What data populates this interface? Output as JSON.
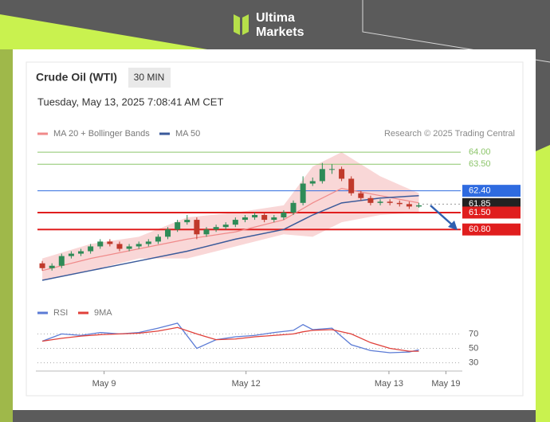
{
  "brand": [
    "Ultima",
    "Markets"
  ],
  "chart_data": [
    {
      "type": "candlestick",
      "title": "Crude Oil (WTI)",
      "interval": "30 MIN",
      "timestamp": "Tuesday, May 13, 2025 7:08:41 AM CET",
      "source": "Research © 2025 Trading Central",
      "open": [
        59.4,
        59.2,
        59.3,
        59.7,
        59.8,
        59.9,
        60.1,
        60.3,
        60.2,
        60.0,
        60.1,
        60.2,
        60.3,
        60.5,
        60.8,
        61.1,
        61.2,
        60.6,
        60.8,
        60.9,
        61.0,
        61.2,
        61.3,
        61.4,
        61.2,
        61.3,
        61.5,
        61.9,
        62.7,
        62.8,
        63.3,
        63.3,
        62.9,
        62.3,
        62.1,
        61.9,
        61.95,
        61.9,
        61.85,
        61.75
      ],
      "high": [
        59.5,
        59.4,
        59.8,
        59.9,
        60.0,
        60.2,
        60.4,
        60.4,
        60.3,
        60.2,
        60.3,
        60.4,
        60.6,
        60.9,
        61.2,
        61.4,
        61.3,
        60.9,
        61.0,
        61.1,
        61.3,
        61.4,
        61.5,
        61.5,
        61.4,
        61.6,
        62.0,
        63.0,
        62.95,
        63.55,
        63.5,
        63.4,
        63.0,
        62.4,
        62.2,
        62.05,
        62.05,
        62.0,
        61.95,
        61.9
      ],
      "low": [
        59.1,
        59.1,
        59.2,
        59.6,
        59.7,
        59.8,
        60.0,
        60.1,
        59.9,
        59.9,
        60.0,
        60.1,
        60.2,
        60.4,
        60.7,
        61.0,
        60.4,
        60.5,
        60.7,
        60.8,
        60.9,
        61.1,
        61.2,
        61.1,
        61.1,
        61.2,
        61.4,
        61.8,
        62.6,
        62.7,
        63.1,
        62.8,
        62.2,
        62.0,
        61.8,
        61.8,
        61.8,
        61.75,
        61.65,
        61.7
      ],
      "close": [
        59.2,
        59.3,
        59.7,
        59.8,
        59.9,
        60.1,
        60.3,
        60.2,
        60.0,
        60.1,
        60.2,
        60.3,
        60.5,
        60.8,
        61.1,
        61.2,
        60.6,
        60.8,
        60.9,
        61.0,
        61.2,
        61.3,
        61.4,
        61.2,
        61.3,
        61.5,
        61.9,
        62.7,
        62.8,
        63.3,
        63.3,
        62.9,
        62.3,
        62.1,
        61.9,
        61.95,
        61.9,
        61.85,
        61.75,
        61.8
      ],
      "up_color": "#2e8b57",
      "down_color": "#c0392b",
      "line_x": [
        0,
        5,
        10,
        15,
        20,
        25,
        28,
        31,
        35,
        39
      ],
      "series": [
        {
          "name": "MA 20 + Bollinger Bands",
          "color": "#f08a8a",
          "values": [
            59.1,
            59.6,
            60.0,
            60.4,
            60.7,
            61.2,
            61.9,
            62.5,
            62.2,
            61.9
          ]
        },
        {
          "name": "MA 50",
          "color": "#3a5a9a",
          "values": [
            58.7,
            59.1,
            59.5,
            59.9,
            60.4,
            60.8,
            61.4,
            61.9,
            62.1,
            62.2
          ]
        }
      ],
      "band_upper": [
        59.6,
        60.2,
        60.5,
        61.3,
        61.5,
        61.8,
        63.4,
        64.0,
        63.0,
        62.3
      ],
      "band_lower": [
        58.7,
        59.1,
        59.6,
        59.6,
        60.1,
        60.6,
        60.5,
        61.1,
        61.4,
        61.5
      ],
      "band_color": "#f7c6c6",
      "levels": [
        {
          "value": 64,
          "label": "64.00",
          "color": "#8cc56a",
          "boxed": false,
          "bold": false,
          "dotted": false
        },
        {
          "value": 63.5,
          "label": "63.50",
          "color": "#8cc56a",
          "boxed": false,
          "bold": false,
          "dotted": false
        },
        {
          "value": 62.4,
          "label": "62.40",
          "color": "#2f6be0",
          "boxed": true,
          "bold": false,
          "dotted": false
        },
        {
          "value": 61.85,
          "label": "61.85",
          "color": "#222222",
          "boxed": true,
          "bold": false,
          "dotted": true
        },
        {
          "value": 61.5,
          "label": "61.50",
          "color": "#e01e1e",
          "boxed": true,
          "bold": true,
          "dotted": false
        },
        {
          "value": 60.8,
          "label": "60.80",
          "color": "#e01e1e",
          "boxed": true,
          "bold": true,
          "dotted": false
        }
      ],
      "xlim": [
        -0.5,
        43.5
      ],
      "ylim": [
        58.6,
        64.2
      ]
    },
    {
      "type": "line",
      "x": [
        0,
        2,
        4,
        6,
        8,
        10,
        12,
        14,
        16,
        18,
        20,
        22,
        24,
        26,
        27,
        28,
        30,
        32,
        34,
        36,
        38,
        39
      ],
      "series": [
        {
          "name": "RSI",
          "color": "#5b7bd5",
          "values": [
            60,
            70,
            68,
            72,
            70,
            72,
            78,
            85,
            50,
            62,
            66,
            68,
            72,
            75,
            83,
            76,
            78,
            55,
            47,
            44,
            45,
            48
          ]
        },
        {
          "name": "9MA",
          "color": "#e0403a",
          "values": [
            60,
            64,
            67,
            69,
            70,
            71,
            74,
            79,
            70,
            62,
            63,
            66,
            68,
            70,
            73,
            75,
            76,
            70,
            58,
            50,
            46,
            46
          ]
        }
      ],
      "xlim": [
        -0.5,
        43.5
      ],
      "ylim": [
        23,
        87
      ],
      "yticks": [
        30,
        50,
        70
      ],
      "xticks": [
        {
          "value": 6.4,
          "label": "May 9"
        },
        {
          "value": 21.1,
          "label": "May 12"
        },
        {
          "value": 35.9,
          "label": "May 13"
        },
        {
          "value": 41.8,
          "label": "May 19"
        }
      ]
    }
  ]
}
